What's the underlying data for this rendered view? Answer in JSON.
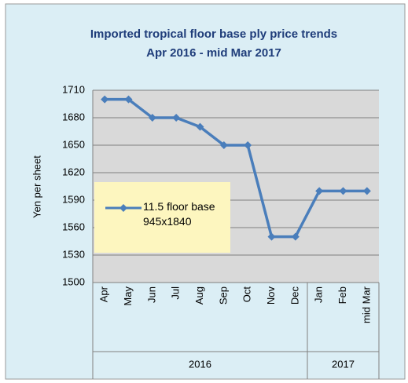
{
  "chart_data": {
    "type": "line",
    "title": "Imported tropical floor base ply price trends",
    "subtitle": "Apr 2016 - mid Mar 2017",
    "y_label": "Yen per sheet",
    "groups": [
      {
        "label": "2016",
        "categories": [
          "Apr",
          "May",
          "Jun",
          "Jul",
          "Aug",
          "Sep",
          "Oct",
          "Nov",
          "Dec"
        ]
      },
      {
        "label": "2017",
        "categories": [
          "Jan",
          "Feb",
          "mid Mar"
        ]
      }
    ],
    "series": [
      {
        "name": "11.5 floor base 945x1840",
        "color": "#4a7ebb",
        "values": [
          1700,
          1700,
          1680,
          1680,
          1670,
          1650,
          1650,
          1550,
          1550,
          1600,
          1600,
          1600
        ]
      }
    ],
    "ylim": [
      1500,
      1710
    ],
    "yticks": [
      1500,
      1530,
      1560,
      1590,
      1620,
      1650,
      1680,
      1710
    ],
    "grid": true,
    "legend": "left"
  }
}
